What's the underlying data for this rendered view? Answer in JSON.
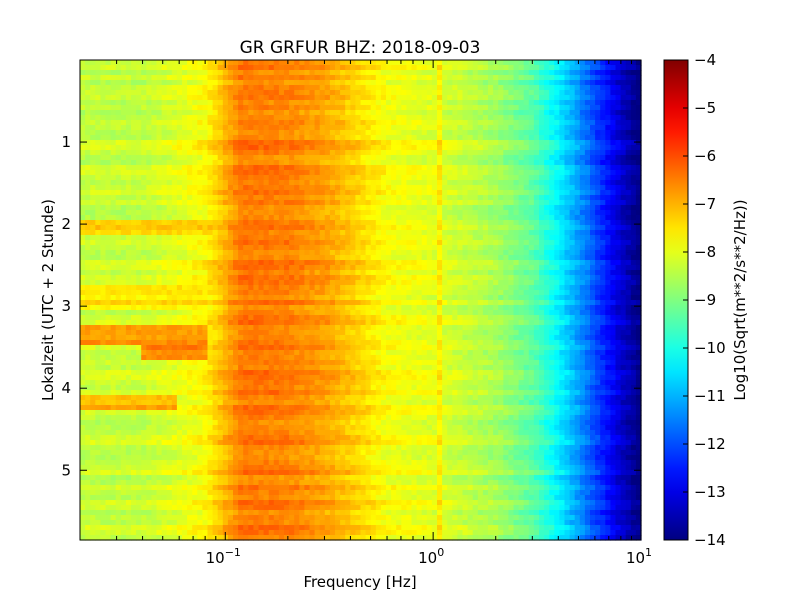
{
  "chart_data": {
    "type": "heatmap",
    "title": "GR GRFUR BHZ: 2018-09-03",
    "xlabel": "Frequency [Hz]",
    "ylabel": "Lokalzeit (UTC + 2 Stunde)",
    "x_scale": "log",
    "xlim": [
      0.02,
      10
    ],
    "ylim": [
      5.85,
      0
    ],
    "x_ticks": [
      {
        "value": 0.1,
        "base": "10",
        "exp": "−1"
      },
      {
        "value": 1,
        "base": "10",
        "exp": "0"
      },
      {
        "value": 10,
        "base": "10",
        "exp": "1"
      }
    ],
    "y_ticks": [
      {
        "value": 1,
        "label": "1"
      },
      {
        "value": 2,
        "label": "2"
      },
      {
        "value": 3,
        "label": "3"
      },
      {
        "value": 4,
        "label": "4"
      },
      {
        "value": 5,
        "label": "5"
      }
    ],
    "colormap": "jet",
    "colorbar": {
      "label": "Log10(Sqrt(m**2/s**2/Hz))",
      "range": [
        -14,
        -4
      ],
      "ticks": [
        {
          "value": -4,
          "label": "−4"
        },
        {
          "value": -5,
          "label": "−5"
        },
        {
          "value": -6,
          "label": "−6"
        },
        {
          "value": -7,
          "label": "−7"
        },
        {
          "value": -8,
          "label": "−8"
        },
        {
          "value": -9,
          "label": "−9"
        },
        {
          "value": -10,
          "label": "−10"
        },
        {
          "value": -11,
          "label": "−11"
        },
        {
          "value": -12,
          "label": "−12"
        },
        {
          "value": -13,
          "label": "−13"
        },
        {
          "value": -14,
          "label": "−14"
        }
      ]
    },
    "frequency_profile": [
      {
        "f": 0.02,
        "v": -8.3
      },
      {
        "f": 0.04,
        "v": -8.3
      },
      {
        "f": 0.06,
        "v": -8.0
      },
      {
        "f": 0.08,
        "v": -7.7
      },
      {
        "f": 0.12,
        "v": -6.4
      },
      {
        "f": 0.2,
        "v": -6.5
      },
      {
        "f": 0.3,
        "v": -6.8
      },
      {
        "f": 0.4,
        "v": -7.2
      },
      {
        "f": 0.6,
        "v": -7.8
      },
      {
        "f": 1.0,
        "v": -8.0
      },
      {
        "f": 2.0,
        "v": -8.6
      },
      {
        "f": 3.0,
        "v": -9.3
      },
      {
        "f": 4.0,
        "v": -10.3
      },
      {
        "f": 5.0,
        "v": -11.2
      },
      {
        "f": 6.0,
        "v": -12.0
      },
      {
        "f": 8.0,
        "v": -13.2
      },
      {
        "f": 10.0,
        "v": -14.0
      }
    ],
    "time_bands": [
      {
        "t0": 1.95,
        "t1": 2.15,
        "f0": 0.02,
        "f1": 0.1,
        "v": -7.3
      },
      {
        "t0": 2.75,
        "t1": 3.05,
        "f0": 0.02,
        "f1": 0.08,
        "v": -7.5
      },
      {
        "t0": 3.25,
        "t1": 3.5,
        "f0": 0.02,
        "f1": 0.08,
        "v": -6.7
      },
      {
        "t0": 3.5,
        "t1": 3.65,
        "f0": 0.04,
        "f1": 0.08,
        "v": -6.6
      },
      {
        "t0": 4.1,
        "t1": 4.25,
        "f0": 0.02,
        "f1": 0.06,
        "v": -7.0
      }
    ],
    "spectral_lines": [
      {
        "f": 1.07,
        "v": -7.6
      }
    ]
  }
}
